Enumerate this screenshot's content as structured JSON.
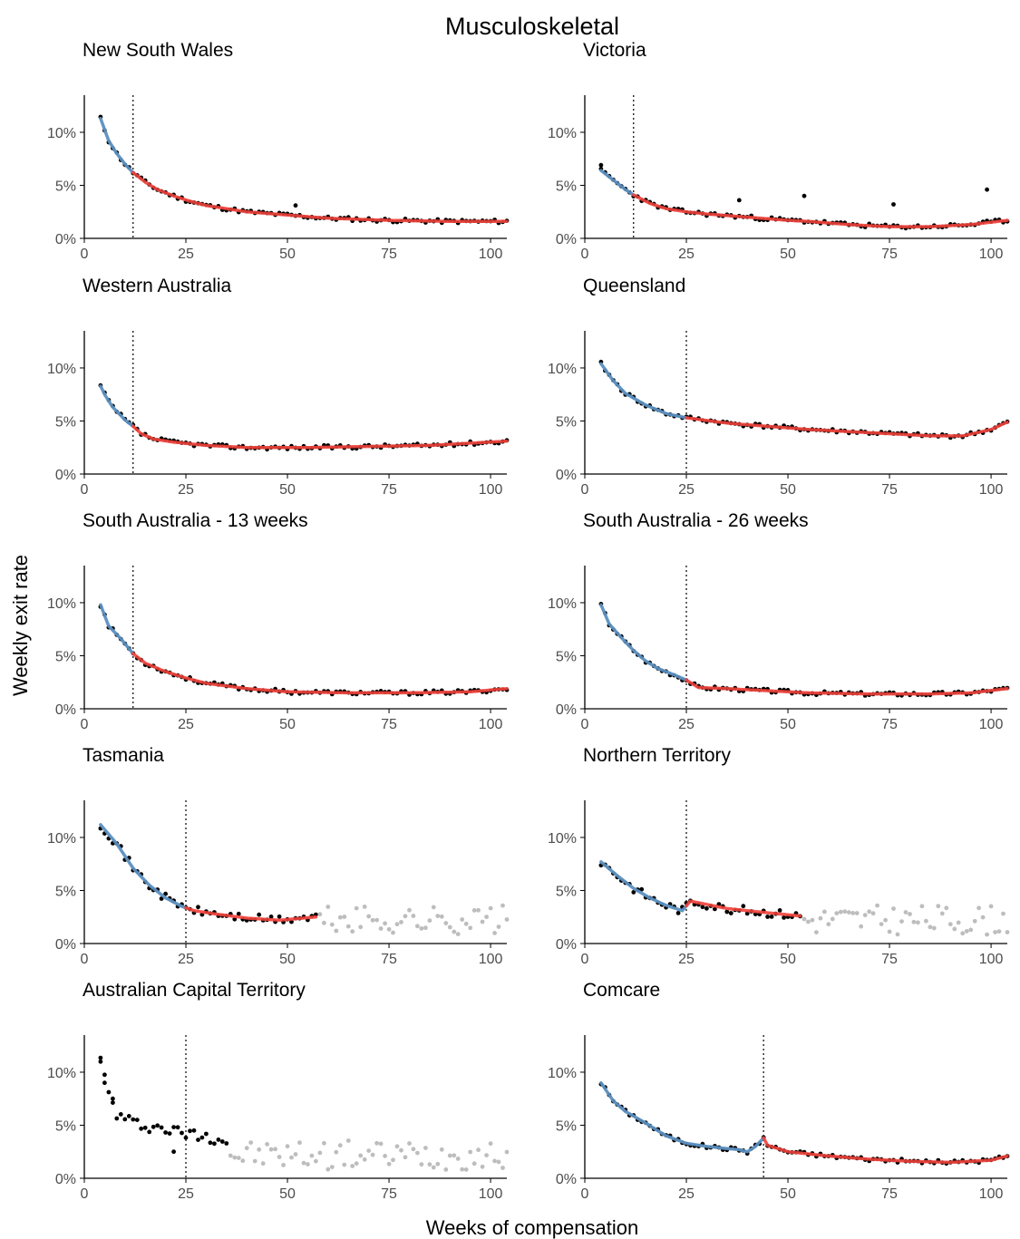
{
  "chart_data": {
    "type": "scatter",
    "title": "Musculoskeletal",
    "xlabel": "Weeks of compensation",
    "ylabel": "Weekly exit rate",
    "xlim": [
      0,
      104
    ],
    "ylim": [
      0,
      0.135
    ],
    "x_ticks": [
      0,
      25,
      50,
      75,
      100
    ],
    "x_tick_labels": [
      "0",
      "25",
      "50",
      "75",
      "100"
    ],
    "y_ticks": [
      0,
      0.05,
      0.1
    ],
    "y_tick_labels": [
      "0%",
      "5%",
      "10%"
    ],
    "colors": {
      "points": "#000000",
      "excluded_points": "#bdbdbd",
      "fit_before": "#5b8fc0",
      "fit_after": "#f0413a",
      "cutoff_line": "#000000"
    },
    "panels": [
      {
        "name": "New South Wales",
        "cutoff": 12,
        "end": 104,
        "seed": 11,
        "curve": [
          [
            4,
            0.113
          ],
          [
            6,
            0.092
          ],
          [
            8,
            0.08
          ],
          [
            10,
            0.07
          ],
          [
            12,
            0.062
          ],
          [
            15,
            0.053
          ],
          [
            18,
            0.046
          ],
          [
            22,
            0.04
          ],
          [
            26,
            0.035
          ],
          [
            30,
            0.031
          ],
          [
            35,
            0.028
          ],
          [
            40,
            0.025
          ],
          [
            50,
            0.022
          ],
          [
            60,
            0.019
          ],
          [
            75,
            0.017
          ],
          [
            90,
            0.016
          ],
          [
            104,
            0.016
          ]
        ],
        "outliers": [
          [
            52,
            0.031
          ]
        ]
      },
      {
        "name": "Victoria",
        "cutoff": 12,
        "end": 104,
        "seed": 23,
        "curve": [
          [
            4,
            0.064
          ],
          [
            7,
            0.055
          ],
          [
            10,
            0.046
          ],
          [
            12,
            0.041
          ],
          [
            16,
            0.033
          ],
          [
            20,
            0.028
          ],
          [
            25,
            0.025
          ],
          [
            30,
            0.023
          ],
          [
            40,
            0.02
          ],
          [
            50,
            0.017
          ],
          [
            55,
            0.016
          ],
          [
            65,
            0.013
          ],
          [
            75,
            0.011
          ],
          [
            85,
            0.011
          ],
          [
            95,
            0.013
          ],
          [
            104,
            0.017
          ]
        ],
        "outliers": [
          [
            4,
            0.069
          ],
          [
            38,
            0.036
          ],
          [
            54,
            0.04
          ],
          [
            76,
            0.032
          ],
          [
            99,
            0.046
          ]
        ]
      },
      {
        "name": "Western Australia",
        "cutoff": 12,
        "end": 104,
        "seed": 37,
        "curve": [
          [
            4,
            0.083
          ],
          [
            5,
            0.075
          ],
          [
            7,
            0.063
          ],
          [
            10,
            0.051
          ],
          [
            12,
            0.045
          ],
          [
            14,
            0.038
          ],
          [
            17,
            0.033
          ],
          [
            22,
            0.03
          ],
          [
            30,
            0.027
          ],
          [
            40,
            0.025
          ],
          [
            55,
            0.025
          ],
          [
            70,
            0.026
          ],
          [
            85,
            0.027
          ],
          [
            104,
            0.031
          ]
        ],
        "outliers": []
      },
      {
        "name": "Queensland",
        "cutoff": 25,
        "end": 104,
        "seed": 41,
        "curve": [
          [
            4,
            0.104
          ],
          [
            7,
            0.088
          ],
          [
            10,
            0.076
          ],
          [
            15,
            0.065
          ],
          [
            20,
            0.057
          ],
          [
            25,
            0.053
          ],
          [
            35,
            0.048
          ],
          [
            45,
            0.045
          ],
          [
            55,
            0.042
          ],
          [
            65,
            0.04
          ],
          [
            75,
            0.038
          ],
          [
            85,
            0.036
          ],
          [
            93,
            0.036
          ],
          [
            100,
            0.042
          ],
          [
            104,
            0.049
          ]
        ],
        "outliers": []
      },
      {
        "name": "South Australia - 13 weeks",
        "cutoff": 12,
        "end": 104,
        "seed": 53,
        "curve": [
          [
            4,
            0.098
          ],
          [
            6,
            0.078
          ],
          [
            9,
            0.066
          ],
          [
            12,
            0.052
          ],
          [
            15,
            0.043
          ],
          [
            20,
            0.035
          ],
          [
            25,
            0.029
          ],
          [
            30,
            0.024
          ],
          [
            40,
            0.019
          ],
          [
            50,
            0.016
          ],
          [
            65,
            0.015
          ],
          [
            80,
            0.015
          ],
          [
            95,
            0.016
          ],
          [
            104,
            0.019
          ]
        ],
        "outliers": []
      },
      {
        "name": "South Australia - 26 weeks",
        "cutoff": 25,
        "end": 104,
        "seed": 67,
        "curve": [
          [
            4,
            0.098
          ],
          [
            6,
            0.08
          ],
          [
            9,
            0.067
          ],
          [
            12,
            0.055
          ],
          [
            15,
            0.045
          ],
          [
            18,
            0.038
          ],
          [
            22,
            0.032
          ],
          [
            25,
            0.027
          ],
          [
            28,
            0.02
          ],
          [
            35,
            0.019
          ],
          [
            45,
            0.017
          ],
          [
            55,
            0.015
          ],
          [
            70,
            0.014
          ],
          [
            85,
            0.014
          ],
          [
            95,
            0.015
          ],
          [
            104,
            0.019
          ]
        ],
        "outliers": []
      },
      {
        "name": "Tasmania",
        "cutoff": 25,
        "end": 57,
        "seed": 71,
        "curve": [
          [
            4,
            0.112
          ],
          [
            8,
            0.094
          ],
          [
            12,
            0.071
          ],
          [
            16,
            0.055
          ],
          [
            20,
            0.043
          ],
          [
            24,
            0.035
          ],
          [
            27,
            0.031
          ],
          [
            32,
            0.028
          ],
          [
            40,
            0.024
          ],
          [
            48,
            0.022
          ],
          [
            57,
            0.025
          ]
        ],
        "outliers": []
      },
      {
        "name": "Northern Territory",
        "cutoff": 25,
        "end": 53,
        "seed": 83,
        "curve": [
          [
            4,
            0.077
          ],
          [
            8,
            0.064
          ],
          [
            12,
            0.052
          ],
          [
            16,
            0.043
          ],
          [
            20,
            0.036
          ],
          [
            24,
            0.031
          ],
          [
            26,
            0.04
          ],
          [
            35,
            0.033
          ],
          [
            45,
            0.029
          ],
          [
            53,
            0.026
          ]
        ],
        "outliers": []
      },
      {
        "name": "Australian Capital Territory",
        "cutoff": 25,
        "end": 35,
        "seed": 97,
        "curve": [
          [
            4,
            0.11
          ],
          [
            6,
            0.08
          ],
          [
            8,
            0.06
          ],
          [
            12,
            0.052
          ],
          [
            18,
            0.048
          ],
          [
            25,
            0.042
          ],
          [
            30,
            0.04
          ],
          [
            35,
            0.036
          ]
        ],
        "outliers": [
          [
            4,
            0.11
          ],
          [
            5,
            0.09
          ],
          [
            7,
            0.075
          ],
          [
            22,
            0.025
          ]
        ],
        "no_fit": true
      },
      {
        "name": "Comcare",
        "cutoff": 44,
        "end": 104,
        "seed": 101,
        "curve": [
          [
            4,
            0.09
          ],
          [
            7,
            0.073
          ],
          [
            10,
            0.063
          ],
          [
            15,
            0.052
          ],
          [
            20,
            0.04
          ],
          [
            25,
            0.033
          ],
          [
            30,
            0.03
          ],
          [
            35,
            0.028
          ],
          [
            38,
            0.027
          ],
          [
            40,
            0.025
          ],
          [
            42,
            0.03
          ],
          [
            44,
            0.038
          ],
          [
            45,
            0.031
          ],
          [
            50,
            0.025
          ],
          [
            60,
            0.021
          ],
          [
            70,
            0.018
          ],
          [
            80,
            0.016
          ],
          [
            90,
            0.015
          ],
          [
            100,
            0.017
          ],
          [
            104,
            0.021
          ]
        ],
        "outliers": []
      }
    ]
  }
}
